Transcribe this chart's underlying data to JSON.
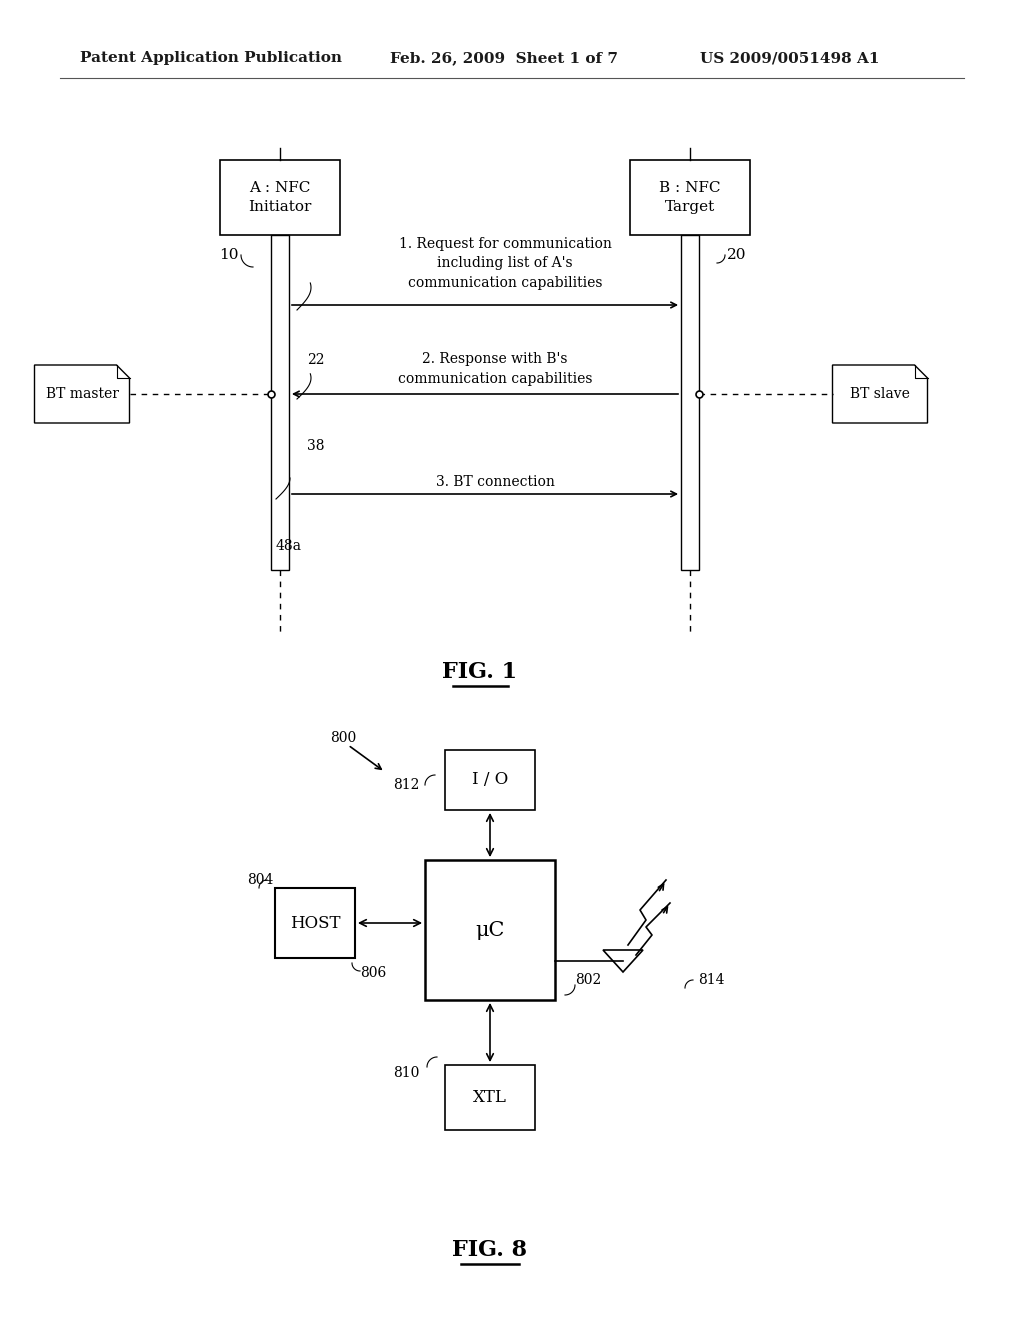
{
  "background_color": "#ffffff",
  "header_left": "Patent Application Publication",
  "header_mid": "Feb. 26, 2009  Sheet 1 of 7",
  "header_right": "US 2009/0051498 A1",
  "fig1": {
    "title": "FIG. 1",
    "nfc_a_label": "A : NFC\nInitiator",
    "nfc_b_label": "B : NFC\nTarget",
    "bt_master_label": "BT master",
    "bt_slave_label": "BT slave",
    "label_10": "10",
    "label_20": "20",
    "label_22": "22",
    "label_38": "38",
    "label_48a": "48a",
    "arrow1_text": "1. Request for communication\nincluding list of A's\ncommunication capabilities",
    "arrow2_text": "2. Response with B's\ncommunication capabilities",
    "arrow3_text": "3. BT connection"
  },
  "fig8": {
    "title": "FIG. 8",
    "label_800": "800",
    "label_802": "802",
    "label_804": "804",
    "label_806": "806",
    "label_810": "810",
    "label_812": "812",
    "label_814": "814",
    "box_io": "I / O",
    "box_uc": "μC",
    "box_host": "HOST",
    "box_xtl": "XTL"
  }
}
